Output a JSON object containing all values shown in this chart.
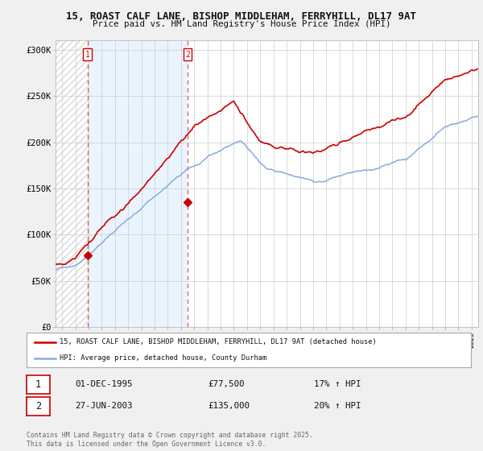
{
  "title_line1": "15, ROAST CALF LANE, BISHOP MIDDLEHAM, FERRYHILL, DL17 9AT",
  "title_line2": "Price paid vs. HM Land Registry's House Price Index (HPI)",
  "ylim": [
    0,
    310000
  ],
  "yticks": [
    0,
    50000,
    100000,
    150000,
    200000,
    250000,
    300000
  ],
  "ytick_labels": [
    "£0",
    "£50K",
    "£100K",
    "£150K",
    "£200K",
    "£250K",
    "£300K"
  ],
  "background_color": "#f0f0f0",
  "plot_bg_color": "#ffffff",
  "grid_color": "#cccccc",
  "hatch_color": "#d8d8d8",
  "shade_color": "#ddeeff",
  "sale1_date": 1995.92,
  "sale1_price": 77500,
  "sale2_date": 2003.49,
  "sale2_price": 135000,
  "red_line_color": "#cc0000",
  "blue_line_color": "#88aadd",
  "dashed_line_color": "#dd6666",
  "legend_label_red": "15, ROAST CALF LANE, BISHOP MIDDLEHAM, FERRYHILL, DL17 9AT (detached house)",
  "legend_label_blue": "HPI: Average price, detached house, County Durham",
  "annotation1": {
    "label": "1",
    "date": 1995.92,
    "price": 77500,
    "text_date": "01-DEC-1995",
    "text_price": "£77,500",
    "text_hpi": "17% ↑ HPI"
  },
  "annotation2": {
    "label": "2",
    "date": 2003.49,
    "price": 135000,
    "text_date": "27-JUN-2003",
    "text_price": "£135,000",
    "text_hpi": "20% ↑ HPI"
  },
  "footer_line1": "Contains HM Land Registry data © Crown copyright and database right 2025.",
  "footer_line2": "This data is licensed under the Open Government Licence v3.0.",
  "xmin": 1993.5,
  "xmax": 2025.5
}
